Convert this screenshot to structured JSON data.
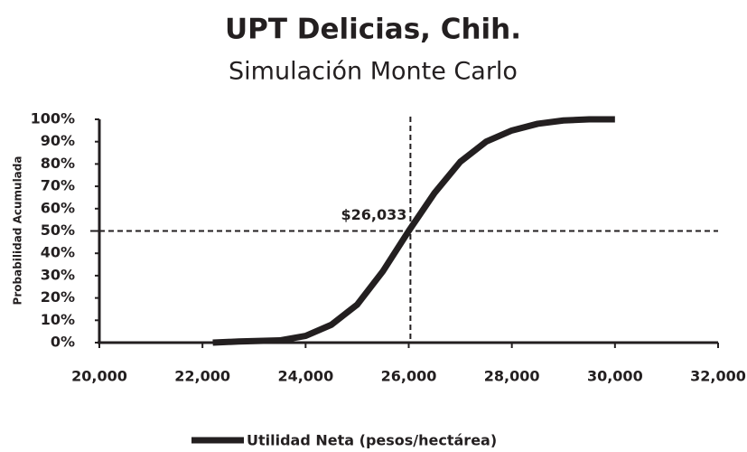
{
  "chart_data": {
    "type": "line",
    "title": "UPT Delicias, Chih.",
    "subtitle": "Simulación Monte Carlo",
    "y_label": "Probabilidad Acumulada",
    "x": [
      22200,
      22700,
      23500,
      24000,
      24500,
      25000,
      25500,
      26000,
      26500,
      27000,
      27500,
      28000,
      28500,
      29000,
      29500,
      30000
    ],
    "series": [
      {
        "name": "Utilidad Neta (pesos/hectárea)",
        "color": "#231f20",
        "values": [
          0,
          0.5,
          1,
          3,
          8,
          17,
          32,
          50,
          67,
          81,
          90,
          95,
          98,
          99.5,
          100,
          100
        ]
      }
    ],
    "xlim": [
      20000,
      32000
    ],
    "xticks": [
      {
        "value": 20000,
        "label": "20,000"
      },
      {
        "value": 22000,
        "label": "22,000"
      },
      {
        "value": 24000,
        "label": "24,000"
      },
      {
        "value": 26000,
        "label": "26,000"
      },
      {
        "value": 28000,
        "label": "28,000"
      },
      {
        "value": 30000,
        "label": "30,000"
      },
      {
        "value": 32000,
        "label": "32,000"
      }
    ],
    "ylim": [
      0,
      100
    ],
    "yticks": [
      {
        "value": 0,
        "label": "0%"
      },
      {
        "value": 10,
        "label": "10%"
      },
      {
        "value": 20,
        "label": "20%"
      },
      {
        "value": 30,
        "label": "30%"
      },
      {
        "value": 40,
        "label": "40%"
      },
      {
        "value": 50,
        "label": "50%"
      },
      {
        "value": 60,
        "label": "60%"
      },
      {
        "value": 70,
        "label": "70%"
      },
      {
        "value": 80,
        "label": "80%"
      },
      {
        "value": 90,
        "label": "90%"
      },
      {
        "value": 100,
        "label": "100%"
      }
    ],
    "median": {
      "x": 26033,
      "y": 50,
      "label": "$26,033"
    },
    "grid": false,
    "legend": "bottom"
  }
}
